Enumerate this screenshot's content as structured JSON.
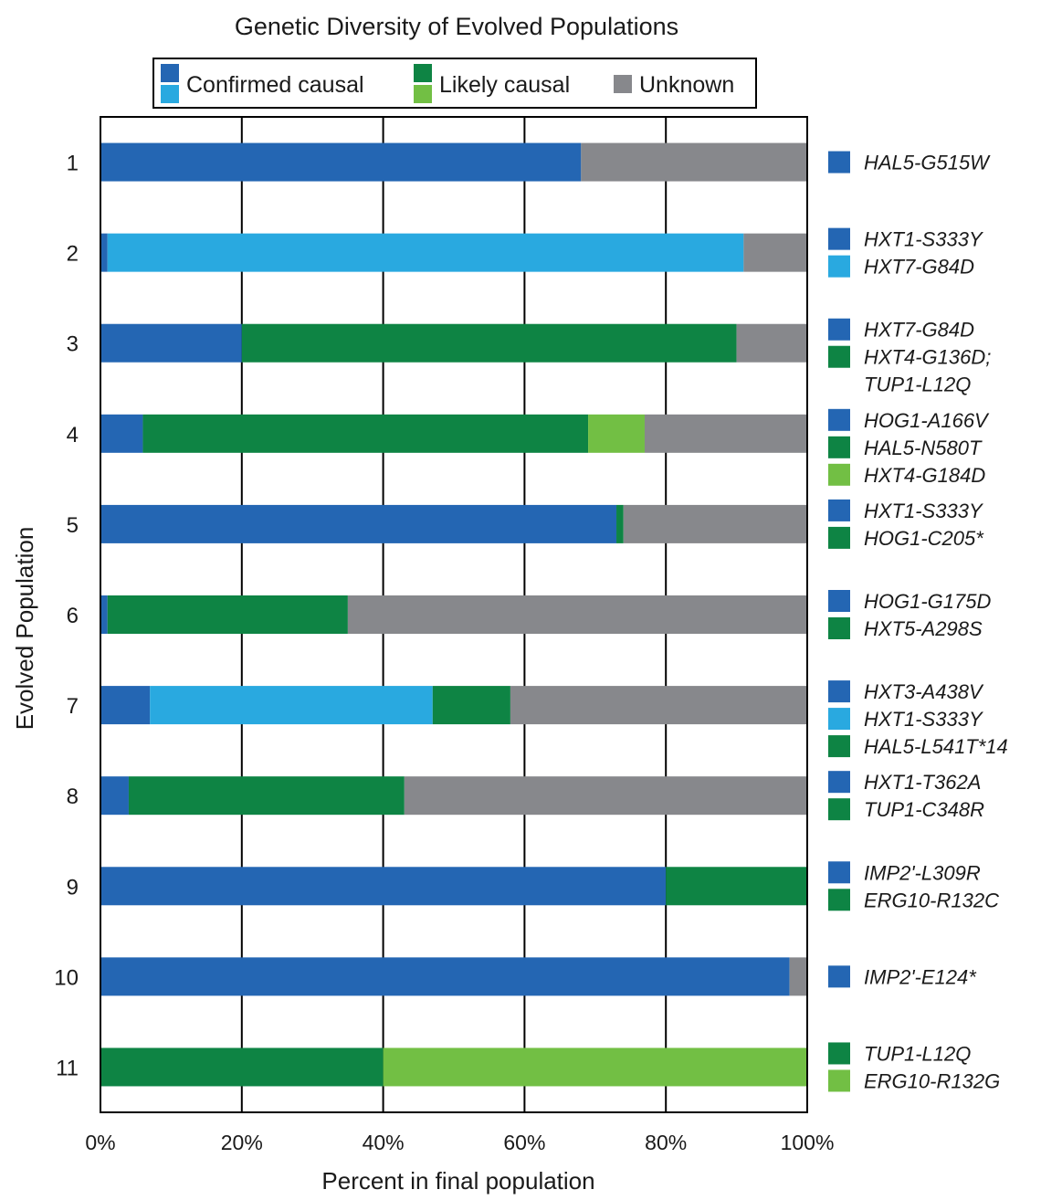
{
  "chart_data": {
    "type": "bar",
    "orientation": "horizontal",
    "stacked": true,
    "title": "Genetic Diversity of Evolved Populations",
    "xlabel": "Percent in final population",
    "ylabel": "Evolved Population",
    "xlim": [
      0,
      100
    ],
    "x_ticks": [
      "0%",
      "20%",
      "40%",
      "60%",
      "80%",
      "100%"
    ],
    "grid": "vertical",
    "legend_position": "top",
    "legend": [
      {
        "label": "Confirmed causal",
        "colors": [
          "#2466b3",
          "#29a9e0"
        ]
      },
      {
        "label": "Likely causal",
        "colors": [
          "#0e8444",
          "#72bf44"
        ]
      },
      {
        "label": "Unknown",
        "colors": [
          "#87888c"
        ]
      }
    ],
    "colors": {
      "confirmed_dark": "#2466b3",
      "confirmed_light": "#29a9e0",
      "likely_dark": "#0e8444",
      "likely_light": "#72bf44",
      "unknown": "#87888c"
    },
    "populations": [
      {
        "label": "1",
        "segments": [
          {
            "category": "confirmed_dark",
            "value": 68
          },
          {
            "category": "unknown",
            "value": 32
          }
        ],
        "mutations": [
          {
            "text": "HAL5-G515W",
            "color": "confirmed_dark"
          }
        ]
      },
      {
        "label": "2",
        "segments": [
          {
            "category": "confirmed_dark",
            "value": 1
          },
          {
            "category": "confirmed_light",
            "value": 90
          },
          {
            "category": "unknown",
            "value": 9
          }
        ],
        "mutations": [
          {
            "text": "HXT1-S333Y",
            "color": "confirmed_dark"
          },
          {
            "text": "HXT7-G84D",
            "color": "confirmed_light"
          }
        ]
      },
      {
        "label": "3",
        "segments": [
          {
            "category": "confirmed_dark",
            "value": 20
          },
          {
            "category": "likely_dark",
            "value": 70
          },
          {
            "category": "unknown",
            "value": 10
          }
        ],
        "mutations": [
          {
            "text": "HXT7-G84D",
            "color": "confirmed_dark"
          },
          {
            "text": "HXT4-G136D;",
            "color": "likely_dark"
          },
          {
            "text": "TUP1-L12Q",
            "color": null
          }
        ]
      },
      {
        "label": "4",
        "segments": [
          {
            "category": "confirmed_dark",
            "value": 6
          },
          {
            "category": "likely_dark",
            "value": 63
          },
          {
            "category": "likely_light",
            "value": 8
          },
          {
            "category": "unknown",
            "value": 23
          }
        ],
        "mutations": [
          {
            "text": "HOG1-A166V",
            "color": "confirmed_dark"
          },
          {
            "text": "HAL5-N580T",
            "color": "likely_dark"
          },
          {
            "text": "HXT4-G184D",
            "color": "likely_light"
          }
        ]
      },
      {
        "label": "5",
        "segments": [
          {
            "category": "confirmed_dark",
            "value": 73
          },
          {
            "category": "likely_dark",
            "value": 1
          },
          {
            "category": "unknown",
            "value": 26
          }
        ],
        "mutations": [
          {
            "text": "HXT1-S333Y",
            "color": "confirmed_dark"
          },
          {
            "text": "HOG1-C205*",
            "color": "likely_dark"
          }
        ]
      },
      {
        "label": "6",
        "segments": [
          {
            "category": "confirmed_dark",
            "value": 1
          },
          {
            "category": "likely_dark",
            "value": 34
          },
          {
            "category": "unknown",
            "value": 65
          }
        ],
        "mutations": [
          {
            "text": "HOG1-G175D",
            "color": "confirmed_dark"
          },
          {
            "text": "HXT5-A298S",
            "color": "likely_dark"
          }
        ]
      },
      {
        "label": "7",
        "segments": [
          {
            "category": "confirmed_dark",
            "value": 7
          },
          {
            "category": "confirmed_light",
            "value": 40
          },
          {
            "category": "likely_dark",
            "value": 11
          },
          {
            "category": "unknown",
            "value": 42
          }
        ],
        "mutations": [
          {
            "text": "HXT3-A438V",
            "color": "confirmed_dark"
          },
          {
            "text": "HXT1-S333Y",
            "color": "confirmed_light"
          },
          {
            "text": "HAL5-L541T*14",
            "color": "likely_dark"
          }
        ]
      },
      {
        "label": "8",
        "segments": [
          {
            "category": "confirmed_dark",
            "value": 4
          },
          {
            "category": "likely_dark",
            "value": 39
          },
          {
            "category": "unknown",
            "value": 57
          }
        ],
        "mutations": [
          {
            "text": "HXT1-T362A",
            "color": "confirmed_dark"
          },
          {
            "text": "TUP1-C348R",
            "color": "likely_dark"
          }
        ]
      },
      {
        "label": "9",
        "segments": [
          {
            "category": "confirmed_dark",
            "value": 80
          },
          {
            "category": "likely_dark",
            "value": 20
          }
        ],
        "mutations": [
          {
            "text": "IMP2'-L309R",
            "color": "confirmed_dark"
          },
          {
            "text": "ERG10-R132C",
            "color": "likely_dark"
          }
        ]
      },
      {
        "label": "10",
        "segments": [
          {
            "category": "confirmed_dark",
            "value": 97.5
          },
          {
            "category": "unknown",
            "value": 2.5
          }
        ],
        "mutations": [
          {
            "text": "IMP2'-E124*",
            "color": "confirmed_dark"
          }
        ]
      },
      {
        "label": "11",
        "segments": [
          {
            "category": "likely_dark",
            "value": 40
          },
          {
            "category": "likely_light",
            "value": 60
          }
        ],
        "mutations": [
          {
            "text": "TUP1-L12Q",
            "color": "likely_dark"
          },
          {
            "text": "ERG10-R132G",
            "color": "likely_light"
          }
        ]
      }
    ]
  }
}
